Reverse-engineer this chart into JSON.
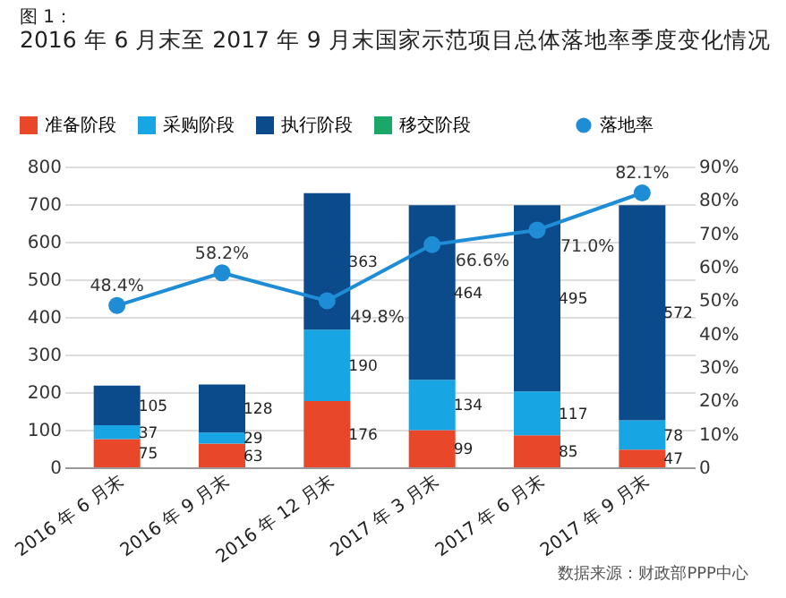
{
  "chart_data": {
    "type": "bar",
    "title": "图 1：",
    "subtitle": "2016 年 6 月末至 2017 年 9 月末国家示范项目总体落地率季度变化情况",
    "categories": [
      "2016 年 6 月末",
      "2016 年 9 月末",
      "2016 年 12 月末",
      "2017 年 3 月末",
      "2017 年 6 月末",
      "2017 年 9 月末"
    ],
    "stacked": true,
    "data_labels": true,
    "grid": "y",
    "legend": "top left",
    "marker": "circle",
    "ylim": [
      0,
      800
    ],
    "yticks": [
      0,
      100,
      200,
      300,
      400,
      500,
      600,
      700,
      800
    ],
    "y2lim": [
      0,
      90
    ],
    "y2ticks": [
      0,
      {
        "value": 10,
        "label": "10%"
      },
      {
        "value": 20,
        "label": "20%"
      },
      {
        "value": 30,
        "label": "30%"
      },
      {
        "value": 40,
        "label": "40%"
      },
      {
        "value": 50,
        "label": "50%"
      },
      {
        "value": 60,
        "label": "60%"
      },
      {
        "value": 70,
        "label": "70%"
      },
      {
        "value": 80,
        "label": "80%"
      },
      {
        "value": 90,
        "label": "90%"
      }
    ],
    "series": [
      {
        "name": "准备阶段",
        "color": "#e8472a",
        "values": [
          75,
          63,
          176,
          99,
          85,
          47
        ]
      },
      {
        "name": "采购阶段",
        "color": "#17a6e3",
        "values": [
          37,
          29,
          190,
          134,
          117,
          78
        ]
      },
      {
        "name": "执行阶段",
        "color": "#0b4a8b",
        "values": [
          105,
          128,
          363,
          464,
          495,
          572
        ]
      },
      {
        "name": "移交阶段",
        "color": "#1aa86a",
        "values": [
          null,
          null,
          null,
          null,
          null,
          null
        ]
      },
      {
        "name": "落地率",
        "type": "line",
        "axis": "y2",
        "color": "#1f8dd6",
        "values": [
          48.4,
          58.2,
          49.8,
          66.6,
          71.0,
          82.1
        ],
        "value_labels": [
          "48.4%",
          "58.2%",
          "49.8%",
          "66.6%",
          "71.0%",
          "82.1%"
        ]
      }
    ],
    "annotations": [
      "数据来源：财政部PPP中心"
    ]
  }
}
